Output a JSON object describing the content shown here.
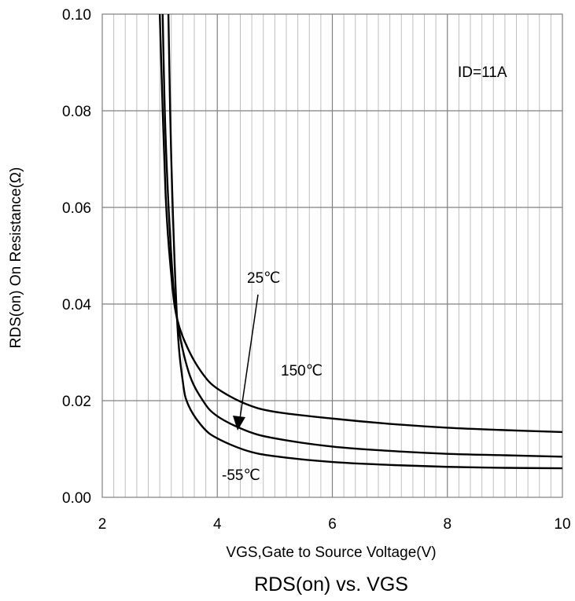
{
  "chart_data": {
    "type": "line",
    "title": "RDS(on) vs. VGS",
    "xlabel": "VGS,Gate to Source Voltage(V)",
    "ylabel": "RDS(on) On Resistance(Ω)",
    "xlim": [
      2,
      10
    ],
    "ylim": [
      0,
      0.1
    ],
    "x_ticks": [
      "2",
      "4",
      "6",
      "8",
      "10"
    ],
    "y_ticks": [
      "0.00",
      "0.02",
      "0.04",
      "0.06",
      "0.08",
      "0.10"
    ],
    "grid": true,
    "annotations": {
      "condition": "ID=11A",
      "label_25": "25℃",
      "label_150": "150℃",
      "label_m55": "-55℃"
    },
    "series": [
      {
        "name": "150℃",
        "x": [
          3.0,
          3.1,
          3.2,
          3.3,
          3.5,
          3.75,
          4.0,
          4.5,
          5.0,
          6.0,
          7.0,
          8.0,
          9.0,
          10.0
        ],
        "y": [
          0.1,
          0.063,
          0.046,
          0.037,
          0.0305,
          0.0255,
          0.0225,
          0.0193,
          0.0177,
          0.0163,
          0.0152,
          0.0144,
          0.0139,
          0.0135
        ]
      },
      {
        "name": "25℃",
        "x": [
          3.05,
          3.1,
          3.2,
          3.3,
          3.5,
          3.75,
          4.0,
          4.5,
          5.0,
          6.0,
          7.0,
          8.0,
          9.0,
          10.0
        ],
        "y": [
          0.1,
          0.075,
          0.05,
          0.037,
          0.026,
          0.02,
          0.0168,
          0.0138,
          0.0122,
          0.0105,
          0.0096,
          0.009,
          0.0087,
          0.0084
        ]
      },
      {
        "name": "-55℃",
        "x": [
          3.15,
          3.2,
          3.3,
          3.4,
          3.5,
          3.75,
          4.0,
          4.5,
          5.0,
          6.0,
          7.0,
          8.0,
          9.0,
          10.0
        ],
        "y": [
          0.1,
          0.07,
          0.037,
          0.024,
          0.019,
          0.0145,
          0.0122,
          0.0097,
          0.0085,
          0.0073,
          0.0067,
          0.0063,
          0.0061,
          0.006
        ]
      }
    ]
  }
}
